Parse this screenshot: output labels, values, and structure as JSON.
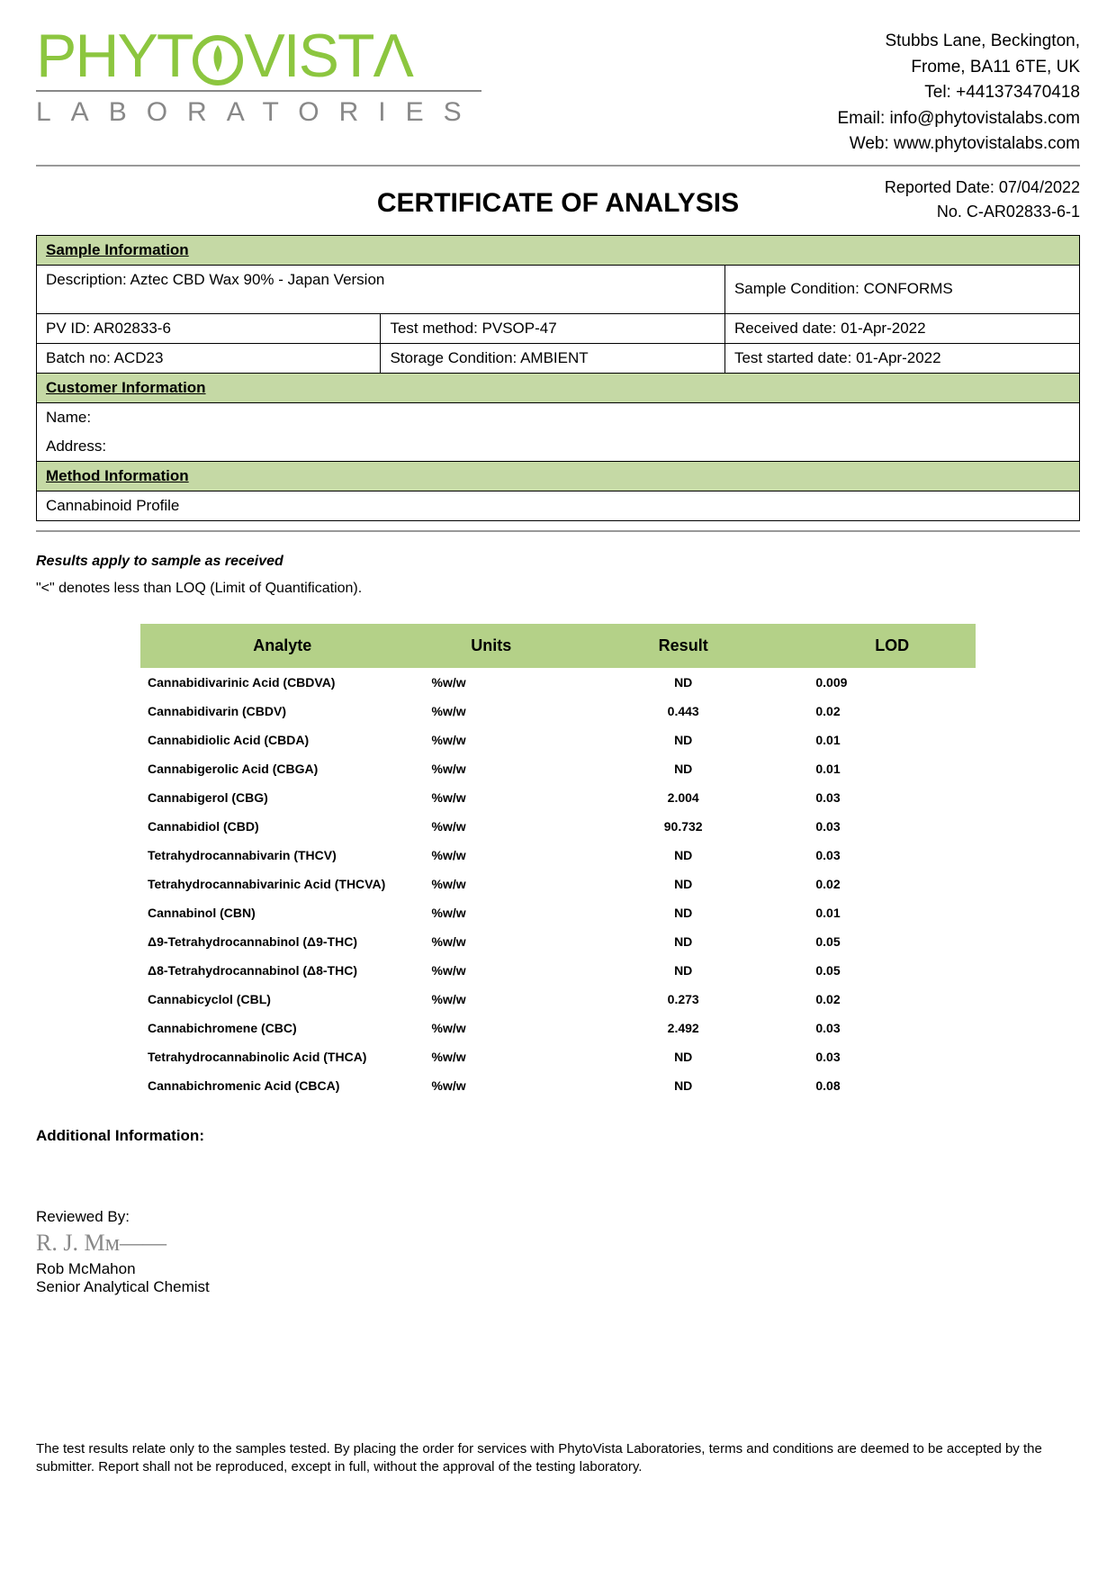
{
  "header": {
    "logo_main_1": "PHYT",
    "logo_main_2": "VIST",
    "logo_main_3": "Λ",
    "logo_sub": "LABORATORIES",
    "contact": {
      "addr1": "Stubbs Lane, Beckington,",
      "addr2": "Frome, BA11 6TE, UK",
      "tel": "Tel: +441373470418",
      "email": "Email: info@phytovistalabs.com",
      "web": "Web: www.phytovistalabs.com"
    }
  },
  "meta": {
    "reported_date": "Reported Date: 07/04/2022",
    "cert_no": "No. C-AR02833-6-1"
  },
  "title": "CERTIFICATE OF ANALYSIS",
  "sections": {
    "sample_header": "Sample Information",
    "customer_header": "Customer Information",
    "method_header": "Method Information"
  },
  "sample": {
    "description": "Description: Aztec CBD Wax 90% - Japan Version",
    "condition": "Sample Condition: CONFORMS",
    "pv_id": "PV ID: AR02833-6",
    "test_method": "Test method: PVSOP-47",
    "received": "Received date: 01-Apr-2022",
    "batch": "Batch no: ACD23",
    "storage": "Storage Condition: AMBIENT",
    "started": "Test started date: 01-Apr-2022"
  },
  "customer": {
    "name": "Name:",
    "address": "Address:"
  },
  "method": {
    "profile": "Cannabinoid Profile"
  },
  "notes": {
    "n1": "Results apply to sample as received",
    "n2": "\"<\" denotes less than LOQ (Limit of Quantification)."
  },
  "results": {
    "columns": {
      "analyte": "Analyte",
      "units": "Units",
      "result": "Result",
      "lod": "LOD"
    },
    "rows": [
      {
        "analyte": "Cannabidivarinic Acid (CBDVA)",
        "units": "%w/w",
        "result": "ND",
        "lod": "0.009"
      },
      {
        "analyte": "Cannabidivarin (CBDV)",
        "units": "%w/w",
        "result": "0.443",
        "lod": "0.02"
      },
      {
        "analyte": "Cannabidiolic Acid (CBDA)",
        "units": "%w/w",
        "result": "ND",
        "lod": "0.01"
      },
      {
        "analyte": "Cannabigerolic Acid (CBGA)",
        "units": "%w/w",
        "result": "ND",
        "lod": "0.01"
      },
      {
        "analyte": "Cannabigerol (CBG)",
        "units": "%w/w",
        "result": "2.004",
        "lod": "0.03"
      },
      {
        "analyte": "Cannabidiol (CBD)",
        "units": "%w/w",
        "result": "90.732",
        "lod": "0.03"
      },
      {
        "analyte": "Tetrahydrocannabivarin (THCV)",
        "units": "%w/w",
        "result": "ND",
        "lod": "0.03"
      },
      {
        "analyte": "Tetrahydrocannabivarinic Acid (THCVA)",
        "units": "%w/w",
        "result": "ND",
        "lod": "0.02"
      },
      {
        "analyte": "Cannabinol (CBN)",
        "units": "%w/w",
        "result": "ND",
        "lod": "0.01"
      },
      {
        "analyte": "Δ9-Tetrahydrocannabinol (Δ9-THC)",
        "units": "%w/w",
        "result": "ND",
        "lod": "0.05"
      },
      {
        "analyte": "Δ8-Tetrahydrocannabinol (Δ8-THC)",
        "units": "%w/w",
        "result": "ND",
        "lod": "0.05"
      },
      {
        "analyte": "Cannabicyclol (CBL)",
        "units": "%w/w",
        "result": "0.273",
        "lod": "0.02"
      },
      {
        "analyte": "Cannabichromene (CBC)",
        "units": "%w/w",
        "result": "2.492",
        "lod": "0.03"
      },
      {
        "analyte": "Tetrahydrocannabinolic Acid (THCA)",
        "units": "%w/w",
        "result": "ND",
        "lod": "0.03"
      },
      {
        "analyte": "Cannabichromenic Acid (CBCA)",
        "units": "%w/w",
        "result": "ND",
        "lod": "0.08"
      }
    ]
  },
  "additional": "Additional Information:",
  "reviewed": {
    "label": "Reviewed By:",
    "signature": "R. J. Mᴍ——",
    "name": "Rob McMahon",
    "title": "Senior Analytical Chemist"
  },
  "footer": "The test results relate only to the samples tested.  By placing the order for services with PhytoVista Laboratories, terms and conditions are deemed to be accepted by the submitter. Report shall not be reproduced, except in full, without the approval of the testing laboratory."
}
